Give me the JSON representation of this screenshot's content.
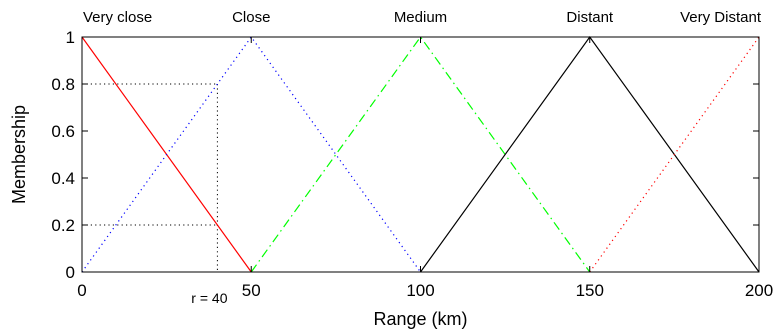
{
  "chart_data": {
    "type": "line",
    "title": "",
    "xlabel": "Range (km)",
    "ylabel": "Membership",
    "xlim": [
      0,
      200
    ],
    "ylim": [
      0,
      1
    ],
    "xticks": [
      0,
      50,
      100,
      150,
      200
    ],
    "yticks": [
      0,
      0.2,
      0.4,
      0.6,
      0.8,
      1
    ],
    "xtick_labels": [
      "0",
      "50",
      "100",
      "150",
      "200"
    ],
    "ytick_labels": [
      "0",
      "0.2",
      "0.4",
      "0.6",
      "0.8",
      "1"
    ],
    "grid": false,
    "series": [
      {
        "name": "Very close",
        "color": "#ff0000",
        "dash": "solid",
        "x": [
          0,
          50
        ],
        "y": [
          1,
          0
        ]
      },
      {
        "name": "Close",
        "color": "#0000ff",
        "dash": "dotted",
        "x": [
          0,
          50,
          100
        ],
        "y": [
          0,
          1,
          0
        ]
      },
      {
        "name": "Medium",
        "color": "#00ff00",
        "dash": "dashdot",
        "x": [
          50,
          100,
          150
        ],
        "y": [
          0,
          1,
          0
        ]
      },
      {
        "name": "Distant",
        "color": "#000000",
        "dash": "solid",
        "x": [
          100,
          150,
          200
        ],
        "y": [
          0,
          1,
          0
        ]
      },
      {
        "name": "Very Distant",
        "color": "#ff0000",
        "dash": "dotted",
        "x": [
          150,
          200
        ],
        "y": [
          0,
          1
        ]
      }
    ],
    "term_labels": [
      {
        "text": "Very close",
        "x": 0
      },
      {
        "text": "Close",
        "x": 50
      },
      {
        "text": "Medium",
        "x": 100
      },
      {
        "text": "Distant",
        "x": 150
      },
      {
        "text": "Very Distant",
        "x": 200
      }
    ],
    "annotation": {
      "text": "r = 40",
      "x": 40,
      "membership_levels": [
        0.8,
        0.2
      ]
    }
  }
}
